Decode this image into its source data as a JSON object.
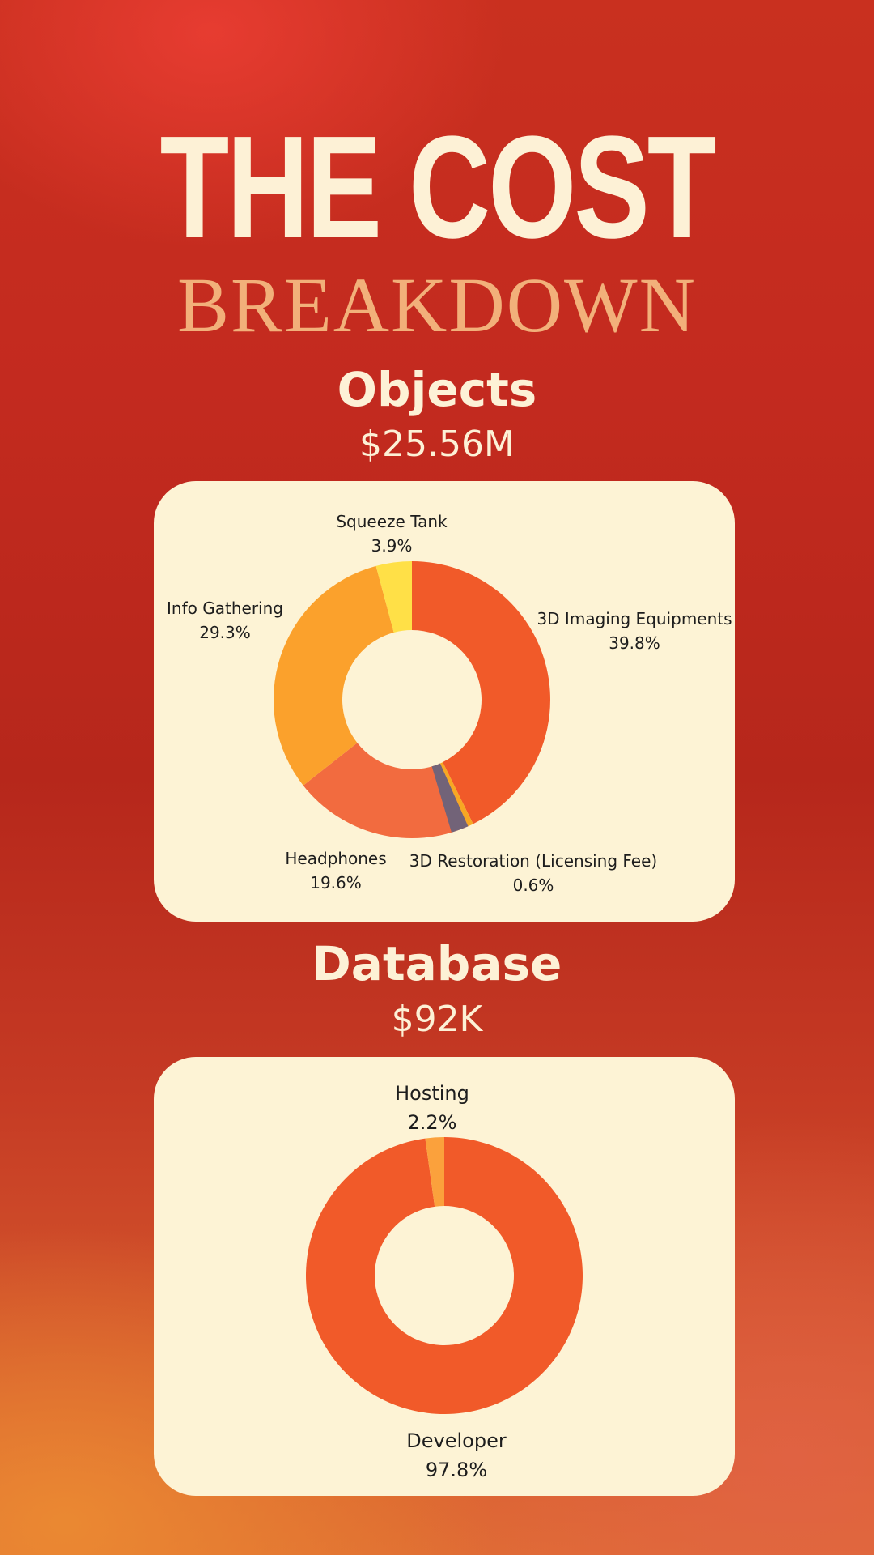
{
  "title": {
    "main": "THE COST",
    "sub": "BREAKDOWN"
  },
  "sections": [
    {
      "title": "Objects",
      "amount": "$25.56M"
    },
    {
      "title": "Database",
      "amount": "$92K"
    }
  ],
  "chart_data": [
    {
      "type": "pie",
      "categories": [
        "3D Imaging Equipments",
        "3D Restoration (Licensing Fee)",
        "Headphones",
        "Info Gathering",
        "Squeeze Tank"
      ],
      "values": [
        39.8,
        0.6,
        19.6,
        29.3,
        3.9
      ],
      "labels": [
        "39.8%",
        "0.6%",
        "19.6%",
        "29.3%",
        "3.9%"
      ],
      "colors": [
        "#f15a29",
        "#f7a823",
        "#f26b3f",
        "#fba12c",
        "#ffe047"
      ]
    },
    {
      "type": "pie",
      "categories": [
        "Developer",
        "Hosting"
      ],
      "values": [
        97.8,
        2.2
      ],
      "labels": [
        "97.8%",
        "2.2%"
      ],
      "colors": [
        "#f15a29",
        "#fba13c"
      ]
    }
  ]
}
